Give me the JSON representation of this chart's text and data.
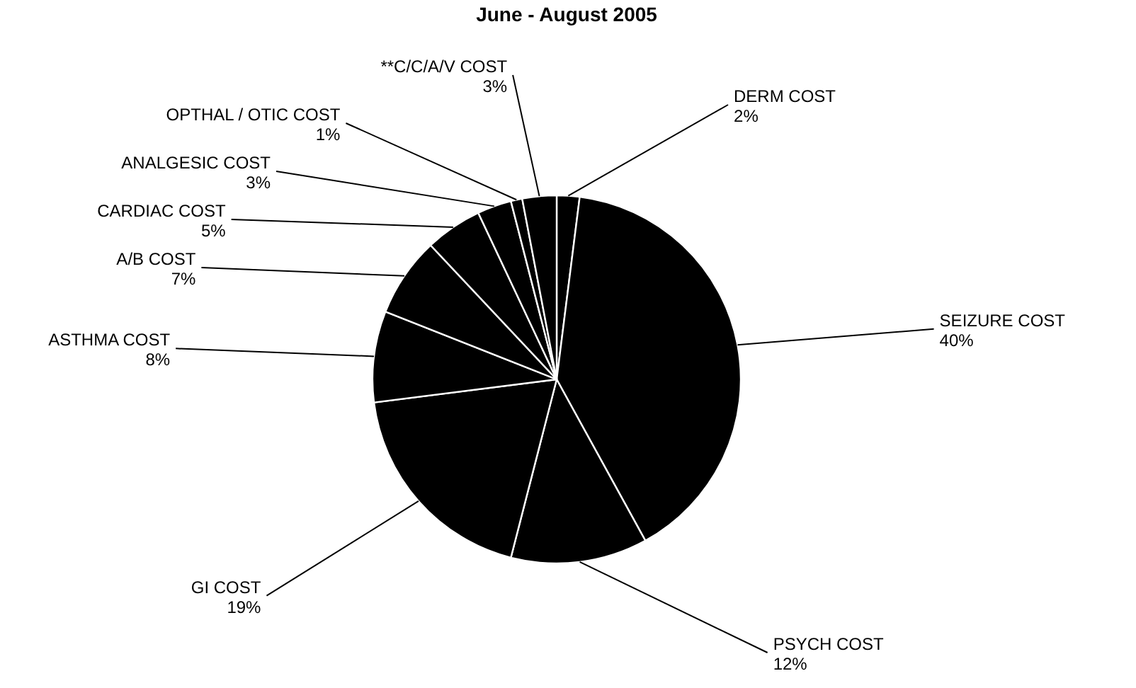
{
  "chart_data": {
    "type": "pie",
    "title": "June - August 2005",
    "categories": [
      "DERM COST",
      "SEIZURE COST",
      "PSYCH COST",
      "GI COST",
      "ASTHMA COST",
      "A/B COST",
      "CARDIAC COST",
      "ANALGESIC COST",
      "OPTHAL / OTIC COST",
      "**C/C/A/V COST"
    ],
    "values": [
      2,
      40,
      12,
      19,
      8,
      7,
      5,
      3,
      1,
      3
    ],
    "value_labels": [
      "2%",
      "40%",
      "12%",
      "19%",
      "8%",
      "7%",
      "5%",
      "3%",
      "1%",
      "3%"
    ],
    "colors": [
      "#000000",
      "#000000",
      "#000000",
      "#000000",
      "#000000",
      "#000000",
      "#000000",
      "#000000",
      "#000000",
      "#000000"
    ]
  }
}
